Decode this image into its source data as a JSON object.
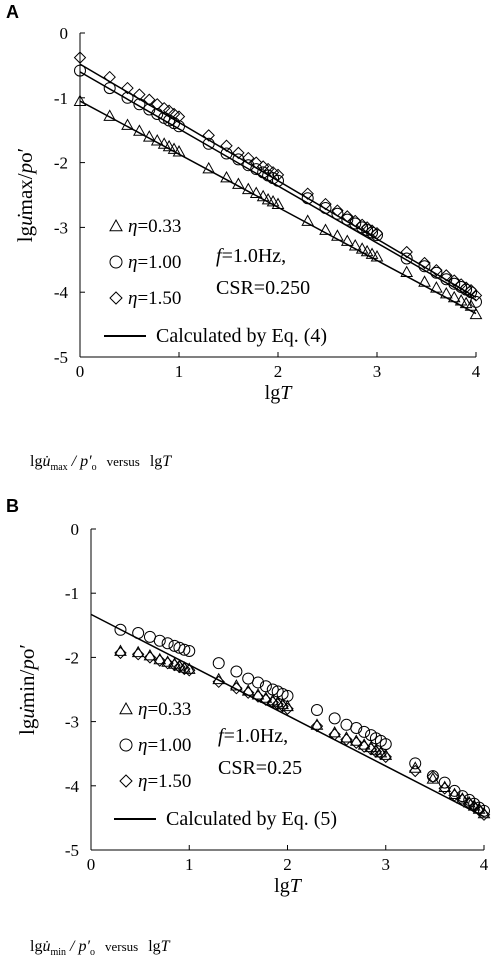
{
  "chart_data": [
    {
      "panel": "A",
      "type": "scatter",
      "xlabel": "lgT",
      "ylabel": "lgu̇max/po′",
      "xlim": [
        0,
        4
      ],
      "ylim": [
        -5,
        0
      ],
      "x_ticks": [
        "0",
        "1",
        "2",
        "3",
        "4"
      ],
      "y_ticks": [
        "0",
        "-1",
        "-2",
        "-3",
        "-4",
        "-5"
      ],
      "grid": false,
      "legend_position": "left-center",
      "annotation": [
        "f=1.0Hz,",
        "CSR=0.250"
      ],
      "series": [
        {
          "name": "η=0.33",
          "marker": "triangle",
          "x": [
            0.0,
            0.3,
            0.48,
            0.6,
            0.7,
            0.78,
            0.85,
            0.9,
            0.95,
            1.0,
            1.3,
            1.48,
            1.6,
            1.7,
            1.78,
            1.85,
            1.9,
            1.95,
            2.0,
            2.3,
            2.48,
            2.6,
            2.7,
            2.78,
            2.85,
            2.9,
            2.95,
            3.0,
            3.3,
            3.48,
            3.6,
            3.7,
            3.78,
            3.85,
            3.9,
            3.95,
            4.0
          ],
          "y": [
            -1.05,
            -1.28,
            -1.42,
            -1.51,
            -1.6,
            -1.66,
            -1.71,
            -1.75,
            -1.79,
            -1.83,
            -2.09,
            -2.23,
            -2.33,
            -2.41,
            -2.47,
            -2.52,
            -2.57,
            -2.6,
            -2.64,
            -2.9,
            -3.04,
            -3.13,
            -3.21,
            -3.28,
            -3.33,
            -3.37,
            -3.41,
            -3.45,
            -3.69,
            -3.84,
            -3.93,
            -4.02,
            -4.08,
            -4.13,
            -4.17,
            -4.21,
            -4.34
          ]
        },
        {
          "name": "η=1.00",
          "marker": "circle",
          "x": [
            0.0,
            0.3,
            0.48,
            0.6,
            0.7,
            0.78,
            0.85,
            0.9,
            0.95,
            1.0,
            1.3,
            1.48,
            1.6,
            1.7,
            1.78,
            1.85,
            1.9,
            1.95,
            2.0,
            2.3,
            2.48,
            2.6,
            2.7,
            2.78,
            2.85,
            2.9,
            2.95,
            3.0,
            3.3,
            3.48,
            3.6,
            3.7,
            3.78,
            3.85,
            3.9,
            3.95,
            4.0
          ],
          "y": [
            -0.58,
            -0.85,
            -1.0,
            -1.1,
            -1.18,
            -1.25,
            -1.31,
            -1.35,
            -1.39,
            -1.44,
            -1.71,
            -1.86,
            -1.95,
            -2.04,
            -2.1,
            -2.15,
            -2.2,
            -2.24,
            -2.28,
            -2.55,
            -2.7,
            -2.79,
            -2.88,
            -2.94,
            -3.0,
            -3.04,
            -3.08,
            -3.12,
            -3.48,
            -3.6,
            -3.7,
            -3.8,
            -3.87,
            -3.92,
            -3.96,
            -4.0,
            -4.15
          ]
        },
        {
          "name": "η=1.50",
          "marker": "diamond",
          "x": [
            0.0,
            0.3,
            0.48,
            0.6,
            0.7,
            0.78,
            0.85,
            0.9,
            0.95,
            1.0,
            1.3,
            1.48,
            1.6,
            1.7,
            1.78,
            1.85,
            1.9,
            1.95,
            2.0,
            2.3,
            2.48,
            2.6,
            2.7,
            2.78,
            2.85,
            2.9,
            2.95,
            3.0,
            3.3,
            3.48,
            3.6,
            3.7,
            3.78,
            3.85,
            3.9,
            3.95,
            4.0
          ],
          "y": [
            -0.38,
            -0.68,
            -0.85,
            -0.95,
            -1.03,
            -1.1,
            -1.16,
            -1.2,
            -1.25,
            -1.29,
            -1.58,
            -1.74,
            -1.85,
            -1.93,
            -2.0,
            -2.06,
            -2.1,
            -2.15,
            -2.19,
            -2.48,
            -2.64,
            -2.74,
            -2.83,
            -2.9,
            -2.96,
            -3.0,
            -3.05,
            -3.09,
            -3.38,
            -3.55,
            -3.66,
            -3.74,
            -3.82,
            -3.88,
            -3.93,
            -3.97,
            -4.05
          ]
        }
      ],
      "fit_lines": [
        {
          "name": "Calculated by Eq. (4)",
          "x": [
            0,
            4
          ],
          "y": [
            -1.05,
            -4.33
          ]
        },
        {
          "x": [
            0,
            4
          ],
          "y": [
            -0.6,
            -4.12
          ]
        },
        {
          "x": [
            0,
            4
          ],
          "y": [
            -0.48,
            -4.08
          ]
        }
      ]
    },
    {
      "panel": "B",
      "type": "scatter",
      "xlabel": "lgT",
      "ylabel": "lgu̇min/po′",
      "xlim": [
        0,
        4
      ],
      "ylim": [
        -5,
        0
      ],
      "x_ticks": [
        "0",
        "1",
        "2",
        "3",
        "4"
      ],
      "y_ticks": [
        "0",
        "-1",
        "-2",
        "-3",
        "-4",
        "-5"
      ],
      "grid": false,
      "legend_position": "left-center",
      "annotation": [
        "f=1.0Hz,",
        "CSR=0.25"
      ],
      "series": [
        {
          "name": "η=0.33",
          "marker": "triangle",
          "x": [
            0.3,
            0.48,
            0.6,
            0.7,
            0.78,
            0.85,
            0.9,
            0.95,
            1.0,
            1.3,
            1.48,
            1.6,
            1.7,
            1.78,
            1.85,
            1.9,
            1.95,
            2.0,
            2.3,
            2.48,
            2.6,
            2.7,
            2.78,
            2.85,
            2.9,
            2.95,
            3.0,
            3.3,
            3.48,
            3.6,
            3.7,
            3.78,
            3.85,
            3.9,
            3.95,
            4.0
          ],
          "y": [
            -1.9,
            -1.92,
            -1.97,
            -2.03,
            -2.07,
            -2.1,
            -2.13,
            -2.16,
            -2.18,
            -2.34,
            -2.44,
            -2.52,
            -2.58,
            -2.63,
            -2.67,
            -2.7,
            -2.73,
            -2.76,
            -3.05,
            -3.17,
            -3.25,
            -3.3,
            -3.36,
            -3.4,
            -3.44,
            -3.48,
            -3.52,
            -3.72,
            -3.89,
            -4.02,
            -4.13,
            -4.2,
            -4.26,
            -4.31,
            -4.36,
            -4.43
          ]
        },
        {
          "name": "η=1.00",
          "marker": "circle",
          "x": [
            0.3,
            0.48,
            0.6,
            0.7,
            0.78,
            0.85,
            0.9,
            0.95,
            1.0,
            1.3,
            1.48,
            1.6,
            1.7,
            1.78,
            1.85,
            1.9,
            1.95,
            2.0,
            2.3,
            2.48,
            2.6,
            2.7,
            2.78,
            2.85,
            2.9,
            2.95,
            3.0,
            3.3,
            3.48,
            3.6,
            3.7,
            3.78,
            3.85,
            3.9,
            3.95,
            4.0
          ],
          "y": [
            -1.57,
            -1.62,
            -1.68,
            -1.74,
            -1.78,
            -1.82,
            -1.85,
            -1.88,
            -1.9,
            -2.09,
            -2.22,
            -2.33,
            -2.39,
            -2.45,
            -2.5,
            -2.53,
            -2.57,
            -2.6,
            -2.82,
            -2.95,
            -3.05,
            -3.1,
            -3.16,
            -3.21,
            -3.26,
            -3.3,
            -3.35,
            -3.65,
            -3.85,
            -3.95,
            -4.08,
            -4.16,
            -4.22,
            -4.28,
            -4.34,
            -4.39
          ]
        },
        {
          "name": "η=1.50",
          "marker": "diamond",
          "x": [
            0.3,
            0.48,
            0.6,
            0.7,
            0.78,
            0.85,
            0.9,
            0.95,
            1.0,
            1.3,
            1.48,
            1.6,
            1.7,
            1.78,
            1.85,
            1.9,
            1.95,
            2.0,
            2.3,
            2.48,
            2.6,
            2.7,
            2.78,
            2.85,
            2.9,
            2.95,
            3.0,
            3.3,
            3.48,
            3.6,
            3.7,
            3.78,
            3.85,
            3.9,
            3.95,
            4.0
          ],
          "y": [
            -1.93,
            -1.95,
            -2.0,
            -2.05,
            -2.09,
            -2.12,
            -2.15,
            -2.18,
            -2.2,
            -2.38,
            -2.48,
            -2.55,
            -2.61,
            -2.66,
            -2.7,
            -2.73,
            -2.76,
            -2.8,
            -3.07,
            -3.2,
            -3.28,
            -3.33,
            -3.39,
            -3.43,
            -3.47,
            -3.5,
            -3.55,
            -3.77,
            -3.86,
            -4.04,
            -4.15,
            -4.22,
            -4.28,
            -4.33,
            -4.38,
            -4.45
          ]
        }
      ],
      "fit_lines": [
        {
          "name": "Calculated by Eq. (5)",
          "x": [
            0,
            4
          ],
          "y": [
            -1.33,
            -4.48
          ]
        }
      ]
    }
  ],
  "captions": {
    "a": {
      "lg": "lg",
      "u": "u̇",
      "sub": "max",
      "p": "/ p′",
      "o": "o",
      "versus": "versus",
      "lgT": "lg",
      "T": "T"
    },
    "b": {
      "lg": "lg",
      "u": "u̇",
      "sub": "min",
      "p": "/ p′",
      "o": "o",
      "versus": "versus",
      "lgT": "lg",
      "T": "T"
    }
  }
}
